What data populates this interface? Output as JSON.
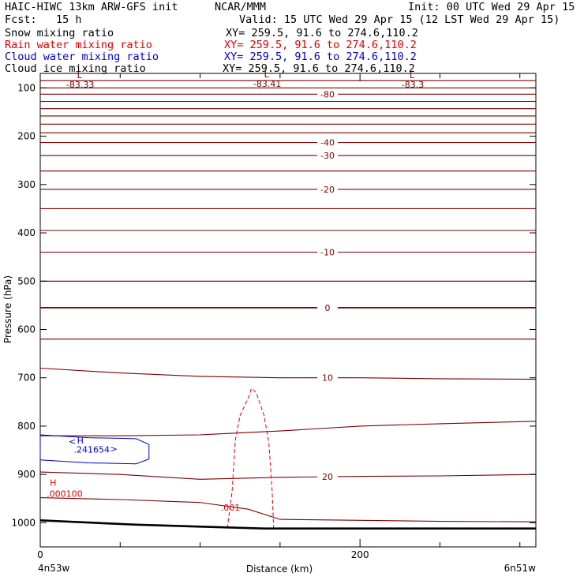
{
  "header": {
    "model": "HAIC-HIWC 13km ARW-GFS init",
    "center": "NCAR/MMM",
    "init": "Init: 00 UTC Wed 29 Apr 15",
    "fcst": "Fcst:   15 h",
    "valid": "Valid: 15 UTC Wed 29 Apr 15 (12 LST Wed 29 Apr 15)"
  },
  "fields": [
    {
      "name": "Snow mixing ratio",
      "xy": "XY= 259.5, 91.6 to 274.6,110.2",
      "color": "#000000"
    },
    {
      "name": "Rain water mixing ratio",
      "xy": "XY= 259.5, 91.6 to 274.6,110.2",
      "color": "#e00000"
    },
    {
      "name": "Cloud water mixing ratio",
      "xy": "XY= 259.5, 91.6 to 274.6,110.2",
      "color": "#0000cc"
    },
    {
      "name": "Cloud ice mixing ratio",
      "xy": "XY= 259.5, 91.6 to 274.6,110.2",
      "color": "#000000"
    }
  ],
  "chart_data": {
    "type": "cross-section",
    "xlabel": "Distance (km)",
    "ylabel": "Pressure (hPa)",
    "xlim": [
      0,
      310
    ],
    "ylim": [
      1050,
      70
    ],
    "x_ticks": [
      0,
      200
    ],
    "x_minor_step": 50,
    "y_ticks": [
      100,
      200,
      300,
      400,
      500,
      600,
      700,
      800,
      900,
      1000
    ],
    "x_endpoints": [
      "4n53w",
      "6n51w"
    ],
    "colors": {
      "temperature": "#7a0000",
      "rain": "#e00000",
      "cloud_water": "#0000cc",
      "terrain": "#000000"
    },
    "terrain": [
      [
        0,
        995
      ],
      [
        20,
        998
      ],
      [
        60,
        1004
      ],
      [
        100,
        1008
      ],
      [
        140,
        1012
      ],
      [
        180,
        1012
      ],
      [
        240,
        1012
      ],
      [
        310,
        1012
      ]
    ],
    "temperature_lines": [
      {
        "pressure": 85,
        "label": ""
      },
      {
        "pressure": 100,
        "label": ""
      },
      {
        "pressure": 113,
        "label": "-80"
      },
      {
        "pressure": 128,
        "label": ""
      },
      {
        "pressure": 143,
        "label": ""
      },
      {
        "pressure": 158,
        "label": ""
      },
      {
        "pressure": 175,
        "label": ""
      },
      {
        "pressure": 193,
        "label": ""
      },
      {
        "pressure": 213,
        "label": "-40"
      },
      {
        "pressure": 240,
        "label": "-30"
      },
      {
        "pressure": 272,
        "label": ""
      },
      {
        "pressure": 310,
        "label": "-20"
      },
      {
        "pressure": 350,
        "label": ""
      },
      {
        "pressure": 395,
        "label": ""
      },
      {
        "pressure": 440,
        "label": "-10"
      },
      {
        "pressure": 500,
        "label": ""
      },
      {
        "pressure": 555,
        "label": "0"
      },
      {
        "pressure": 620,
        "label": ""
      },
      {
        "points": [
          [
            0,
            680
          ],
          [
            50,
            690
          ],
          [
            100,
            697
          ],
          [
            150,
            700
          ],
          [
            200,
            700
          ],
          [
            250,
            702
          ],
          [
            310,
            703
          ]
        ],
        "label": "10"
      },
      {
        "points": [
          [
            0,
            820
          ],
          [
            50,
            820
          ],
          [
            100,
            818
          ],
          [
            150,
            810
          ],
          [
            200,
            800
          ],
          [
            250,
            795
          ],
          [
            310,
            790
          ]
        ],
        "label": ""
      },
      {
        "points": [
          [
            0,
            895
          ],
          [
            50,
            900
          ],
          [
            100,
            910
          ],
          [
            150,
            906
          ],
          [
            200,
            904
          ],
          [
            250,
            903
          ],
          [
            310,
            900
          ]
        ],
        "label": "20"
      },
      {
        "points": [
          [
            0,
            948
          ],
          [
            50,
            952
          ],
          [
            100,
            958
          ],
          [
            130,
            972
          ],
          [
            150,
            993
          ],
          [
            200,
            995
          ],
          [
            250,
            997
          ],
          [
            310,
            998
          ]
        ],
        "label": ""
      }
    ],
    "low_labels": [
      {
        "x": 25,
        "p": 90,
        "letter": "L",
        "value": "-83.33"
      },
      {
        "x": 142,
        "p": 88,
        "letter": "L",
        "value": "-83.41"
      },
      {
        "x": 233,
        "p": 90,
        "letter": "L",
        "value": "-83.3"
      }
    ],
    "rain": {
      "label": ".001",
      "outline": [
        [
          117,
          1012
        ],
        [
          120,
          935
        ],
        [
          122,
          830
        ],
        [
          125,
          778
        ],
        [
          131,
          735
        ],
        [
          132,
          722
        ],
        [
          135,
          730
        ],
        [
          140,
          778
        ],
        [
          143,
          835
        ],
        [
          145,
          930
        ],
        [
          146,
          1012
        ]
      ],
      "max_label": {
        "letter": "H",
        "value": ".000100",
        "x": 6,
        "p": 945
      }
    },
    "cloud_water": {
      "outline": [
        [
          0,
          818
        ],
        [
          30,
          824
        ],
        [
          60,
          826
        ],
        [
          68,
          838
        ],
        [
          68,
          868
        ],
        [
          60,
          878
        ],
        [
          30,
          876
        ],
        [
          0,
          870
        ]
      ],
      "max_label": {
        "letter": "H",
        "value": ".241654"
      }
    }
  }
}
